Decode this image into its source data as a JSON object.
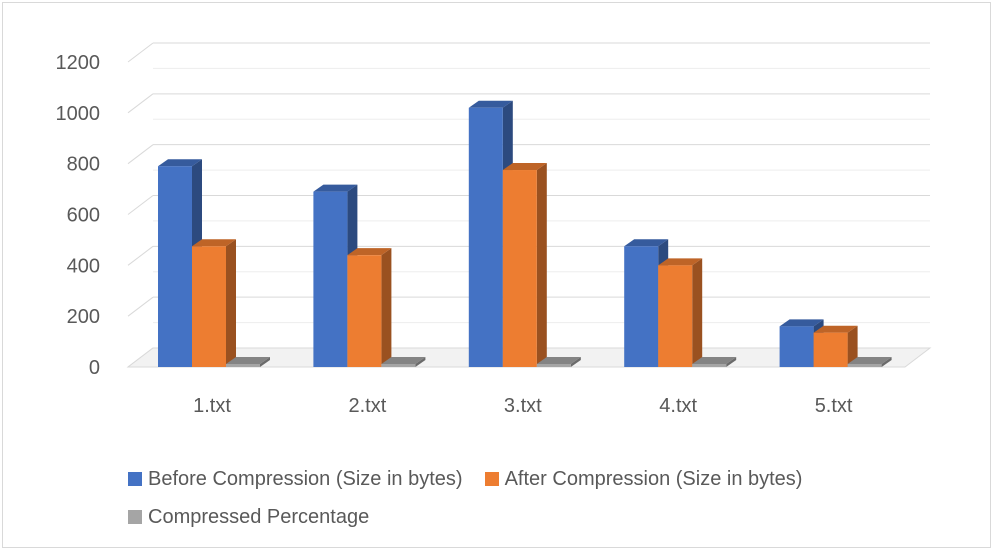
{
  "chart_data": {
    "type": "bar",
    "style": "3d-clustered-column",
    "categories": [
      "1.txt",
      "2.txt",
      "3.txt",
      "4.txt",
      "5.txt"
    ],
    "series": [
      {
        "name": "Before Compression (Size in bytes)",
        "color": "#4472c4",
        "values": [
          790,
          690,
          1020,
          475,
          160
        ]
      },
      {
        "name": "After Compression (Size in bytes)",
        "color": "#ed7d31",
        "values": [
          475,
          440,
          775,
          400,
          135
        ]
      },
      {
        "name": "Compressed Percentage",
        "color": "#a5a5a5",
        "values": [
          0,
          0,
          0,
          0,
          0
        ]
      }
    ],
    "ylim": [
      0,
      1200
    ],
    "yticks": [
      "0",
      "200",
      "400",
      "600",
      "800",
      "1000",
      "1200"
    ],
    "grid": true,
    "legend_position": "bottom"
  }
}
